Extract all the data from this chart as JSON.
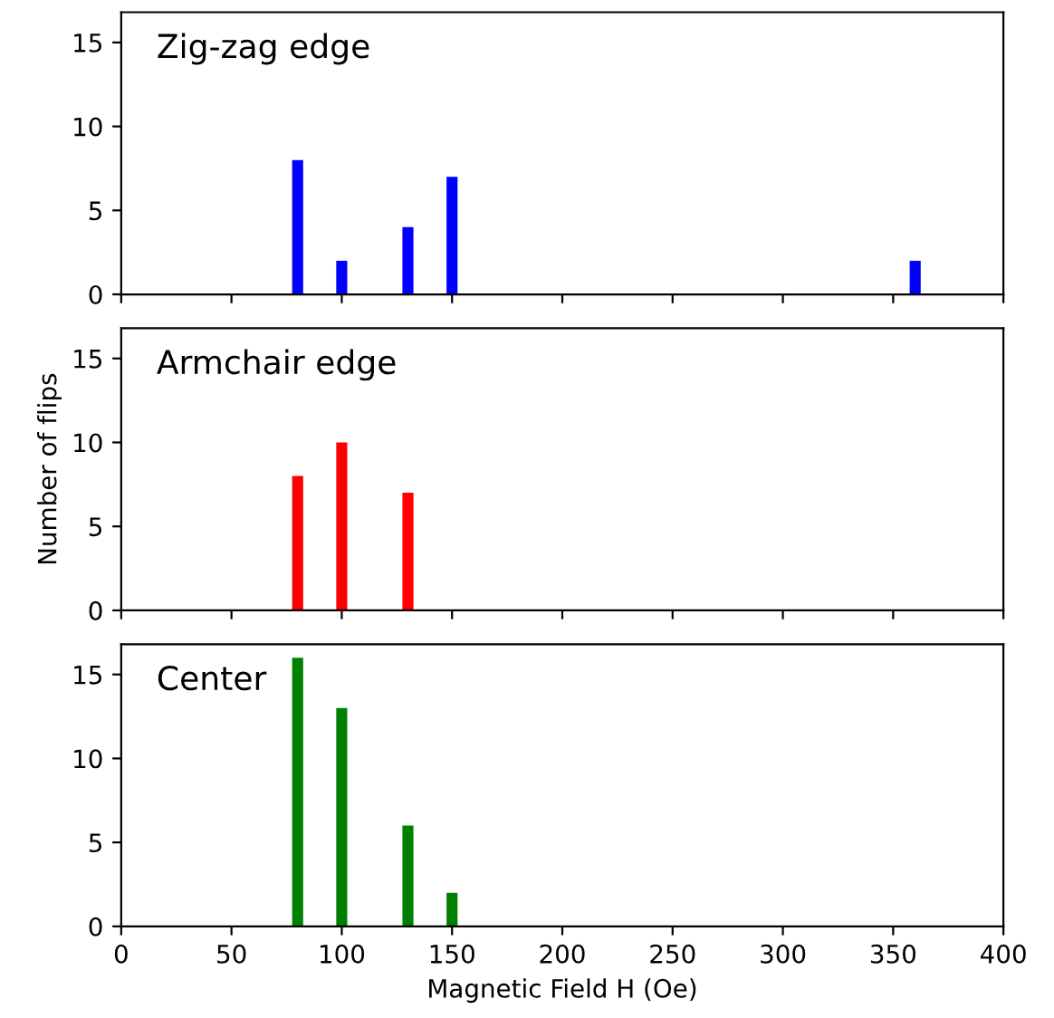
{
  "chart_data": [
    {
      "type": "bar",
      "title": "Zig-zag edge",
      "x": [
        80,
        100,
        130,
        150,
        360
      ],
      "values": [
        8,
        2,
        4,
        7,
        2
      ],
      "color": "#0000ff",
      "xlim": [
        0,
        400
      ],
      "xticks": [
        0,
        50,
        100,
        150,
        200,
        250,
        300,
        350,
        400
      ],
      "ylim": [
        0,
        16.8
      ],
      "yticks": [
        0,
        5,
        10,
        15
      ],
      "tick_labels": "y"
    },
    {
      "type": "bar",
      "title": "Armchair edge",
      "ylabel": "Number of flips",
      "x": [
        80,
        100,
        130
      ],
      "values": [
        8,
        10,
        7
      ],
      "color": "#ff0000",
      "xlim": [
        0,
        400
      ],
      "xticks": [
        0,
        50,
        100,
        150,
        200,
        250,
        300,
        350,
        400
      ],
      "ylim": [
        0,
        16.8
      ],
      "yticks": [
        0,
        5,
        10,
        15
      ],
      "tick_labels": "y"
    },
    {
      "type": "bar",
      "title": "Center",
      "xlabel": "Magnetic Field H (Oe)",
      "x": [
        80,
        100,
        130,
        150
      ],
      "values": [
        16,
        13,
        6,
        2
      ],
      "color": "#008000",
      "xlim": [
        0,
        400
      ],
      "xticks": [
        0,
        50,
        100,
        150,
        200,
        250,
        300,
        350,
        400
      ],
      "ylim": [
        0,
        16.8
      ],
      "yticks": [
        0,
        5,
        10,
        15
      ]
    }
  ]
}
